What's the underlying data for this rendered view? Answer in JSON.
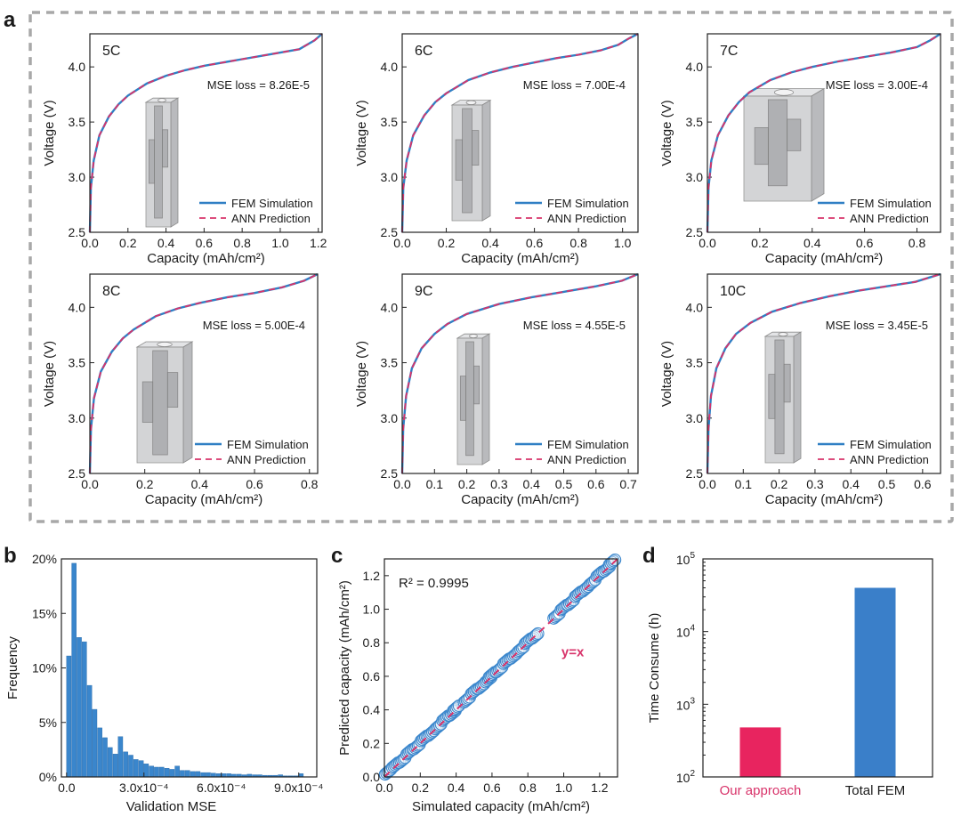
{
  "figure_labels": {
    "a": "a",
    "b": "b",
    "c": "c",
    "d": "d"
  },
  "chart_data": [
    {
      "id": "a-5C",
      "type": "line",
      "panel": "a",
      "tag": "5C",
      "annotation": "MSE loss = 8.26E-5",
      "xlabel": "Capacity (mAh/cm²)",
      "ylabel": "Voltage (V)",
      "xlim": [
        0,
        1.22
      ],
      "ylim": [
        2.5,
        4.3
      ],
      "xticks": [
        "0.0",
        "0.2",
        "0.4",
        "0.6",
        "0.8",
        "1.0",
        "1.2"
      ],
      "yticks": [
        "2.5",
        "3.0",
        "3.5",
        "4.0"
      ],
      "legend": [
        "FEM Simulation",
        "ANN Prediction"
      ],
      "series": [
        {
          "name": "FEM Simulation",
          "x": [
            0,
            0.005,
            0.02,
            0.05,
            0.1,
            0.15,
            0.2,
            0.3,
            0.4,
            0.5,
            0.6,
            0.7,
            0.8,
            0.9,
            1.0,
            1.1,
            1.18,
            1.22
          ],
          "y": [
            2.5,
            2.9,
            3.15,
            3.38,
            3.55,
            3.66,
            3.74,
            3.85,
            3.92,
            3.97,
            4.01,
            4.04,
            4.07,
            4.1,
            4.13,
            4.16,
            4.24,
            4.3
          ]
        },
        {
          "name": "ANN Prediction",
          "x": [
            0,
            0.005,
            0.02,
            0.05,
            0.1,
            0.15,
            0.2,
            0.3,
            0.4,
            0.5,
            0.6,
            0.7,
            0.8,
            0.9,
            1.0,
            1.1,
            1.18,
            1.22
          ],
          "y": [
            2.5,
            2.9,
            3.15,
            3.38,
            3.55,
            3.66,
            3.74,
            3.85,
            3.92,
            3.97,
            4.01,
            4.04,
            4.07,
            4.1,
            4.13,
            4.16,
            4.24,
            4.3
          ]
        }
      ]
    },
    {
      "id": "a-6C",
      "type": "line",
      "panel": "a",
      "tag": "6C",
      "annotation": "MSE loss = 7.00E-4",
      "xlabel": "Capacity (mAh/cm²)",
      "ylabel": "Voltage (V)",
      "xlim": [
        0,
        1.07
      ],
      "ylim": [
        2.5,
        4.3
      ],
      "xticks": [
        "0.0",
        "0.2",
        "0.4",
        "0.6",
        "0.8",
        "1.0"
      ],
      "yticks": [
        "2.5",
        "3.0",
        "3.5",
        "4.0"
      ],
      "legend": [
        "FEM Simulation",
        "ANN Prediction"
      ],
      "series": [
        {
          "name": "FEM Simulation",
          "x": [
            0,
            0.005,
            0.02,
            0.05,
            0.1,
            0.15,
            0.2,
            0.3,
            0.4,
            0.5,
            0.6,
            0.7,
            0.8,
            0.9,
            0.98,
            1.03,
            1.07
          ],
          "y": [
            2.5,
            2.9,
            3.15,
            3.38,
            3.56,
            3.68,
            3.76,
            3.88,
            3.95,
            4.0,
            4.04,
            4.08,
            4.11,
            4.15,
            4.2,
            4.26,
            4.3
          ]
        },
        {
          "name": "ANN Prediction",
          "x": [
            0,
            0.005,
            0.02,
            0.05,
            0.1,
            0.15,
            0.2,
            0.3,
            0.4,
            0.5,
            0.6,
            0.7,
            0.8,
            0.9,
            0.98,
            1.03,
            1.07
          ],
          "y": [
            2.5,
            2.9,
            3.15,
            3.38,
            3.56,
            3.68,
            3.76,
            3.88,
            3.95,
            4.0,
            4.04,
            4.08,
            4.11,
            4.15,
            4.2,
            4.26,
            4.3
          ]
        }
      ]
    },
    {
      "id": "a-7C",
      "type": "line",
      "panel": "a",
      "tag": "7C",
      "annotation": "MSE loss = 3.00E-4",
      "xlabel": "Capacity (mAh/cm²)",
      "ylabel": "Voltage (V)",
      "xlim": [
        0,
        0.89
      ],
      "ylim": [
        2.5,
        4.3
      ],
      "xticks": [
        "0.0",
        "0.2",
        "0.4",
        "0.6",
        "0.8"
      ],
      "yticks": [
        "2.5",
        "3.0",
        "3.5",
        "4.0"
      ],
      "legend": [
        "FEM Simulation",
        "ANN Prediction"
      ],
      "series": [
        {
          "name": "FEM Simulation",
          "x": [
            0,
            0.004,
            0.015,
            0.04,
            0.08,
            0.12,
            0.16,
            0.24,
            0.32,
            0.4,
            0.5,
            0.6,
            0.7,
            0.8,
            0.85,
            0.89
          ],
          "y": [
            2.5,
            2.9,
            3.15,
            3.38,
            3.56,
            3.68,
            3.77,
            3.88,
            3.95,
            4.0,
            4.05,
            4.09,
            4.13,
            4.18,
            4.24,
            4.3
          ]
        },
        {
          "name": "ANN Prediction",
          "x": [
            0,
            0.004,
            0.015,
            0.04,
            0.08,
            0.12,
            0.16,
            0.24,
            0.32,
            0.4,
            0.5,
            0.6,
            0.7,
            0.8,
            0.85,
            0.89
          ],
          "y": [
            2.5,
            2.9,
            3.15,
            3.38,
            3.56,
            3.68,
            3.77,
            3.88,
            3.95,
            4.0,
            4.05,
            4.09,
            4.13,
            4.18,
            4.24,
            4.3
          ]
        }
      ]
    },
    {
      "id": "a-8C",
      "type": "line",
      "panel": "a",
      "tag": "8C",
      "annotation": "MSE loss = 5.00E-4",
      "xlabel": "Capacity (mAh/cm²)",
      "ylabel": "Voltage (V)",
      "xlim": [
        0,
        0.83
      ],
      "ylim": [
        2.5,
        4.3
      ],
      "xticks": [
        "0.0",
        "0.2",
        "0.4",
        "0.6",
        "0.8"
      ],
      "yticks": [
        "2.5",
        "3.0",
        "3.5",
        "4.0"
      ],
      "legend": [
        "FEM Simulation",
        "ANN Prediction"
      ],
      "series": [
        {
          "name": "FEM Simulation",
          "x": [
            0,
            0.004,
            0.015,
            0.04,
            0.08,
            0.12,
            0.16,
            0.24,
            0.32,
            0.4,
            0.5,
            0.6,
            0.7,
            0.78,
            0.83
          ],
          "y": [
            2.5,
            2.9,
            3.18,
            3.42,
            3.6,
            3.72,
            3.8,
            3.92,
            3.99,
            4.04,
            4.09,
            4.13,
            4.18,
            4.24,
            4.3
          ]
        },
        {
          "name": "ANN Prediction",
          "x": [
            0,
            0.004,
            0.015,
            0.04,
            0.08,
            0.12,
            0.16,
            0.24,
            0.32,
            0.4,
            0.5,
            0.6,
            0.7,
            0.78,
            0.83
          ],
          "y": [
            2.5,
            2.9,
            3.18,
            3.42,
            3.6,
            3.72,
            3.8,
            3.92,
            3.99,
            4.04,
            4.09,
            4.13,
            4.18,
            4.24,
            4.3
          ]
        }
      ]
    },
    {
      "id": "a-9C",
      "type": "line",
      "panel": "a",
      "tag": "9C",
      "annotation": "MSE loss = 4.55E-5",
      "xlabel": "Capacity (mAh/cm²)",
      "ylabel": "Voltage (V)",
      "xlim": [
        0,
        0.73
      ],
      "ylim": [
        2.5,
        4.3
      ],
      "xticks": [
        "0.0",
        "0.1",
        "0.2",
        "0.3",
        "0.4",
        "0.5",
        "0.6",
        "0.7"
      ],
      "yticks": [
        "2.5",
        "3.0",
        "3.5",
        "4.0"
      ],
      "legend": [
        "FEM Simulation",
        "ANN Prediction"
      ],
      "series": [
        {
          "name": "FEM Simulation",
          "x": [
            0,
            0.003,
            0.012,
            0.03,
            0.06,
            0.1,
            0.14,
            0.2,
            0.3,
            0.4,
            0.5,
            0.6,
            0.68,
            0.73
          ],
          "y": [
            2.5,
            2.9,
            3.2,
            3.45,
            3.63,
            3.76,
            3.85,
            3.94,
            4.03,
            4.09,
            4.14,
            4.19,
            4.24,
            4.3
          ]
        },
        {
          "name": "ANN Prediction",
          "x": [
            0,
            0.003,
            0.012,
            0.03,
            0.06,
            0.1,
            0.14,
            0.2,
            0.3,
            0.4,
            0.5,
            0.6,
            0.68,
            0.73
          ],
          "y": [
            2.5,
            2.9,
            3.2,
            3.45,
            3.63,
            3.76,
            3.85,
            3.94,
            4.03,
            4.09,
            4.14,
            4.19,
            4.24,
            4.3
          ]
        }
      ]
    },
    {
      "id": "a-10C",
      "type": "line",
      "panel": "a",
      "tag": "10C",
      "annotation": "MSE loss = 3.45E-5",
      "xlabel": "Capacity (mAh/cm²)",
      "ylabel": "Voltage (V)",
      "xlim": [
        0,
        0.65
      ],
      "ylim": [
        2.5,
        4.3
      ],
      "xticks": [
        "0.0",
        "0.1",
        "0.2",
        "0.3",
        "0.4",
        "0.5",
        "0.6"
      ],
      "yticks": [
        "2.5",
        "3.0",
        "3.5",
        "4.0"
      ],
      "legend": [
        "FEM Simulation",
        "ANN Prediction"
      ],
      "series": [
        {
          "name": "FEM Simulation",
          "x": [
            0,
            0.003,
            0.01,
            0.025,
            0.05,
            0.08,
            0.12,
            0.18,
            0.26,
            0.34,
            0.42,
            0.5,
            0.58,
            0.62,
            0.65
          ],
          "y": [
            2.5,
            2.9,
            3.2,
            3.45,
            3.63,
            3.76,
            3.86,
            3.96,
            4.04,
            4.1,
            4.15,
            4.19,
            4.23,
            4.27,
            4.3
          ]
        },
        {
          "name": "ANN Prediction",
          "x": [
            0,
            0.003,
            0.01,
            0.025,
            0.05,
            0.08,
            0.12,
            0.18,
            0.26,
            0.34,
            0.42,
            0.5,
            0.58,
            0.62,
            0.65
          ],
          "y": [
            2.5,
            2.9,
            3.2,
            3.45,
            3.63,
            3.76,
            3.86,
            3.96,
            4.04,
            4.1,
            4.15,
            4.19,
            4.23,
            4.27,
            4.3
          ]
        }
      ]
    },
    {
      "id": "b",
      "type": "bar",
      "panel": "b",
      "xlabel": "Validation MSE",
      "ylabel": "Frequency",
      "xlim": [
        -0.2,
        9.7
      ],
      "ylim": [
        0,
        20
      ],
      "xticks": [
        {
          "v": 0,
          "label": "0.0"
        },
        {
          "v": 3,
          "label": "3.0x10⁻⁴"
        },
        {
          "v": 6,
          "label": "6.0x10⁻⁴"
        },
        {
          "v": 9,
          "label": "9.0x10⁻⁴"
        }
      ],
      "yticks": [
        "0%",
        "5%",
        "10%",
        "15%",
        "20%"
      ],
      "bin_start": 0.1,
      "bin_width": 0.2,
      "values": [
        11.1,
        19.6,
        12.8,
        12.4,
        8.4,
        6.2,
        4.5,
        3.6,
        2.7,
        2.1,
        3.7,
        2.3,
        2.0,
        1.6,
        1.5,
        1.2,
        1.0,
        0.9,
        0.9,
        0.8,
        0.7,
        1.0,
        0.6,
        0.6,
        0.5,
        0.5,
        0.4,
        0.4,
        0.35,
        0.3,
        0.3,
        0.3,
        0.25,
        0.25,
        0.2,
        0.25,
        0.2,
        0.2,
        0.15,
        0.15,
        0.15,
        0.2,
        0.1,
        0.1,
        0.1,
        0.3
      ]
    },
    {
      "id": "c",
      "type": "scatter",
      "panel": "c",
      "xlabel": "Simulated capacity (mAh/cm²)",
      "ylabel": "Predicted capacity (mAh/cm²)",
      "xlim": [
        0,
        1.3
      ],
      "ylim": [
        0,
        1.3
      ],
      "xticks": [
        "0.0",
        "0.2",
        "0.4",
        "0.6",
        "0.8",
        "1.0",
        "1.2"
      ],
      "yticks": [
        "0.0",
        "0.2",
        "0.4",
        "0.6",
        "0.8",
        "1.0",
        "1.2"
      ],
      "annotation": "R² = 0.9995",
      "reference_line_label": "y=x",
      "points_x": [
        0.02,
        0.06,
        0.1,
        0.14,
        0.18,
        0.22,
        0.26,
        0.3,
        0.34,
        0.38,
        0.4,
        0.46,
        0.5,
        0.54,
        0.58,
        0.6,
        0.64,
        0.68,
        0.72,
        0.76,
        0.8,
        0.84,
        0.96,
        1.0,
        1.04,
        1.08,
        1.12,
        1.16,
        1.2,
        1.24,
        1.27
      ],
      "points_y": [
        0.03,
        0.07,
        0.1,
        0.15,
        0.18,
        0.23,
        0.26,
        0.3,
        0.35,
        0.38,
        0.41,
        0.46,
        0.51,
        0.54,
        0.58,
        0.61,
        0.64,
        0.69,
        0.72,
        0.76,
        0.81,
        0.84,
        0.96,
        1.01,
        1.04,
        1.09,
        1.12,
        1.16,
        1.21,
        1.24,
        1.28
      ]
    },
    {
      "id": "d",
      "type": "bar",
      "panel": "d",
      "yscale": "log",
      "ylabel": "Time Consume (h)",
      "ylim_log": [
        2,
        5
      ],
      "yticks": [
        {
          "v": 2,
          "base": "10",
          "exp": "2"
        },
        {
          "v": 3,
          "base": "10",
          "exp": "3"
        },
        {
          "v": 4,
          "base": "10",
          "exp": "4"
        },
        {
          "v": 5,
          "base": "10",
          "exp": "5"
        }
      ],
      "categories": [
        "Our approach",
        "Total FEM"
      ],
      "values": [
        480,
        40000
      ],
      "colors": [
        "#e8245f",
        "#3a7fc9"
      ],
      "label_colors": [
        "#d8336a",
        "#1a1a1a"
      ]
    }
  ]
}
